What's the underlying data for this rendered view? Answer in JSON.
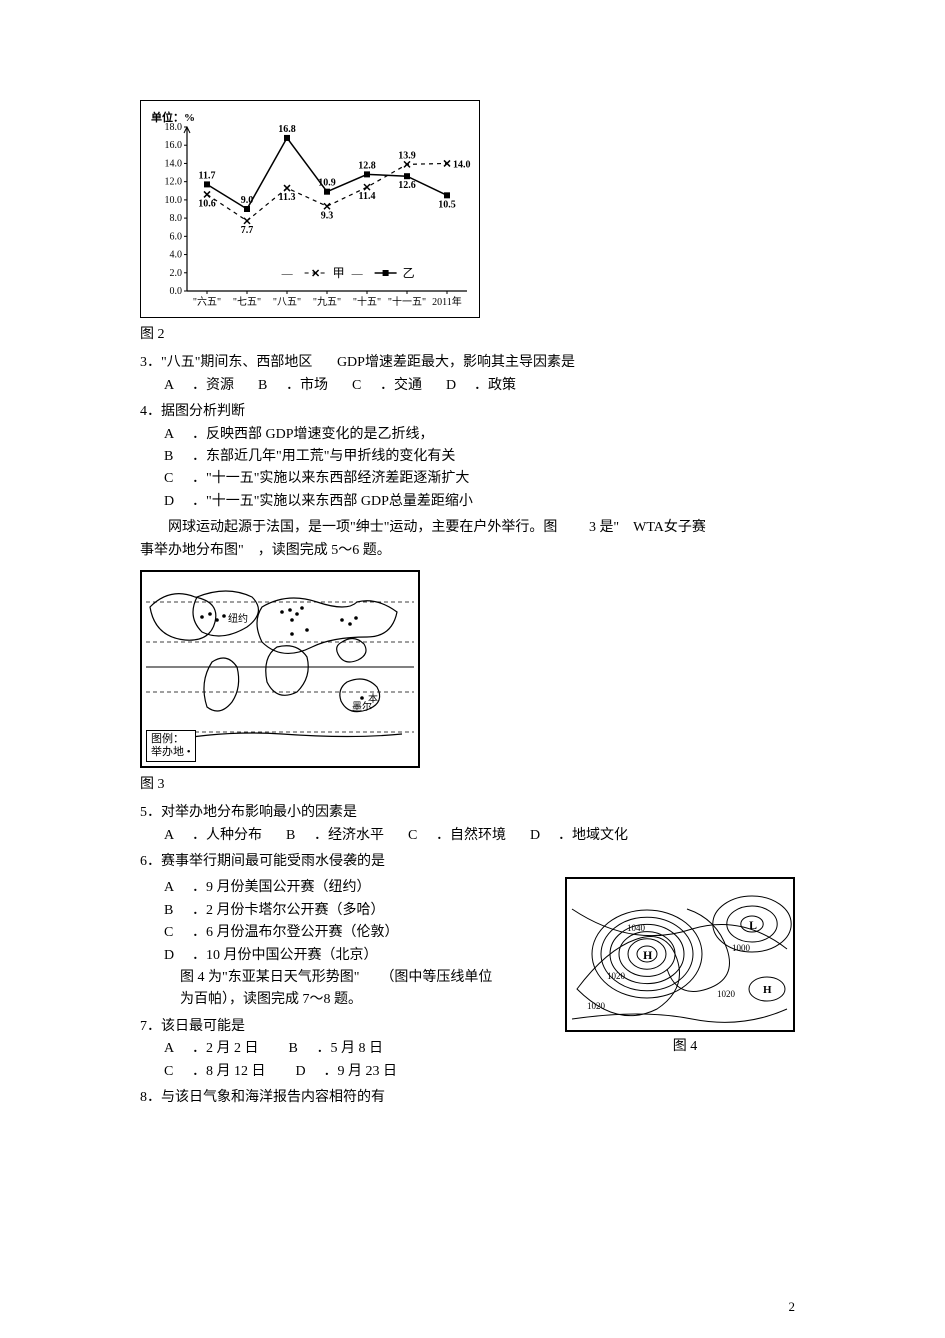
{
  "figure2": {
    "label": "图 2",
    "y_title": "单位：%",
    "x_categories": [
      "\"六五\"",
      "\"七五\"",
      "\"八五\"",
      "\"九五\"",
      "\"十五\"",
      "\"十一五\"",
      "2011年"
    ],
    "y_ticks": [
      0.0,
      2.0,
      4.0,
      6.0,
      8.0,
      10.0,
      12.0,
      14.0,
      16.0,
      18.0
    ],
    "series_jia": {
      "name": "甲",
      "marker": "x",
      "dash": "4 4",
      "values": [
        10.6,
        7.7,
        11.3,
        9.3,
        11.4,
        13.9,
        14.0
      ],
      "label_pos": [
        "below",
        "below",
        "below",
        "below",
        "below",
        "above",
        "right"
      ]
    },
    "series_yi": {
      "name": "乙",
      "marker": "square",
      "dash": "none",
      "values": [
        11.7,
        9.0,
        16.8,
        10.9,
        12.8,
        12.6,
        10.5
      ],
      "label_pos": [
        "above",
        "above",
        "above",
        "above",
        "above",
        "below",
        "below"
      ]
    },
    "legend_labels": [
      "甲",
      "乙"
    ],
    "axis_color": "#000000",
    "line_color": "#000000",
    "font_size_tick": 10,
    "font_size_label": 11
  },
  "q3": {
    "stem_a": "3．\"八五\"期间东、西部地区",
    "stem_b": "GDP增速差距最大，影响其主导因素是",
    "opts": {
      "A": "．资源",
      "B": "．市场",
      "C": "．交通",
      "D": "．政策"
    }
  },
  "q4": {
    "stem": "4．据图分析判断",
    "opts": {
      "A": "．反映西部   GDP增速变化的是乙折线，",
      "B": "．东部近几年\"用工荒\"与甲折线的变化有关",
      "C": "．\"十一五\"实施以来东西部经济差距逐渐扩大",
      "D": "．\"十一五\"实施以来东西部        GDP总量差距缩小"
    }
  },
  "intro56": {
    "line1": "网球运动起源于法国，是一项\"绅士\"运动，主要在户外举行。图",
    "line1b": "3 是\"",
    "line1c": "WTA女子赛",
    "line2": "事举办地分布图\"",
    "line2b": "，读图完成  5～6 题。"
  },
  "figure3": {
    "label": "图 3",
    "legend_title": "图例：",
    "legend_item": "举办地",
    "city_ny": "纽约",
    "city_mel": "墨尔",
    "stroke": "#000000"
  },
  "q5": {
    "stem": "5．对举办地分布影响最小的因素是",
    "opts": {
      "A": "．人种分布",
      "B": "．经济水平",
      "C": "．自然环境",
      "D": "．地域文化"
    }
  },
  "q6": {
    "stem": "6．赛事举行期间最可能受雨水侵袭的是",
    "opts": {
      "A": "．9 月份美国公开赛（纽约）",
      "B": "．2 月份卡塔尔公开赛（多哈）",
      "C": "．6 月份温布尔登公开赛（伦敦）",
      "D": "．10 月份中国公开赛（北京）"
    }
  },
  "intro78": {
    "line1": "图 4 为\"东亚某日天气形势图\"",
    "line1b": "（图中等压线单位",
    "line2": "为百帕），读图完成   7～8 题。"
  },
  "figure4": {
    "label": "图 4",
    "isobars": [
      "1020",
      "1040",
      "1020",
      "1000",
      "L",
      "H"
    ],
    "stroke": "#000000"
  },
  "q7": {
    "stem": "7．该日最可能是",
    "opts": {
      "A": "．2 月 2 日",
      "B": "．5 月 8 日",
      "C": "．8 月 12 日",
      "D": "．9 月 23 日"
    }
  },
  "q8": {
    "stem": "8．与该日气象和海洋报告内容相符的有"
  },
  "page": "2"
}
